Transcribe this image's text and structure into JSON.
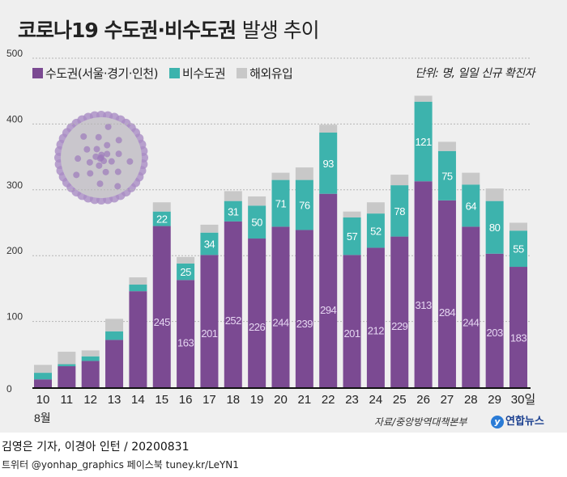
{
  "title": {
    "bold": "코로나19 수도권·비수도권",
    "light": "발생 추이"
  },
  "unit_note": "단위: 명, 일일 신규 확진자",
  "source": "자료/중앙방역대책본부",
  "logo": "연합뉴스",
  "credit": "김영은 기자, 이경아 인턴 / 20200831",
  "social": "트위터 @yonhap_graphics  페이스북 tuney.kr/LeYN1",
  "colors": {
    "capital": "#7b4a92",
    "non_capital": "#3db3ad",
    "overseas": "#c8c8c8"
  },
  "chart_data": {
    "type": "bar",
    "stacked": true,
    "categories": [
      "10",
      "11",
      "12",
      "13",
      "14",
      "15",
      "16",
      "17",
      "18",
      "19",
      "20",
      "21",
      "22",
      "23",
      "24",
      "25",
      "26",
      "27",
      "28",
      "29",
      "30일"
    ],
    "x_sublabel": "8월",
    "ylim": [
      0,
      500
    ],
    "yticks": [
      "0",
      "100",
      "200",
      "300",
      "400",
      "500"
    ],
    "grid": true,
    "legend_position": "top-left",
    "series": [
      {
        "name": "수도권(서울·경기·인천)",
        "values": [
          12,
          32,
          40,
          72,
          146,
          245,
          163,
          201,
          252,
          226,
          244,
          239,
          294,
          201,
          212,
          229,
          313,
          284,
          244,
          203,
          183
        ],
        "labeled_from": 5
      },
      {
        "name": "비수도권",
        "values": [
          10,
          3,
          7,
          13,
          10,
          22,
          25,
          34,
          31,
          50,
          71,
          76,
          93,
          57,
          52,
          78,
          121,
          75,
          64,
          80,
          55
        ],
        "labeled_from": 5
      },
      {
        "name": "해외유입",
        "values": [
          12,
          19,
          9,
          19,
          11,
          14,
          10,
          12,
          15,
          14,
          11,
          19,
          12,
          9,
          17,
          16,
          9,
          14,
          18,
          19,
          12
        ]
      }
    ]
  }
}
